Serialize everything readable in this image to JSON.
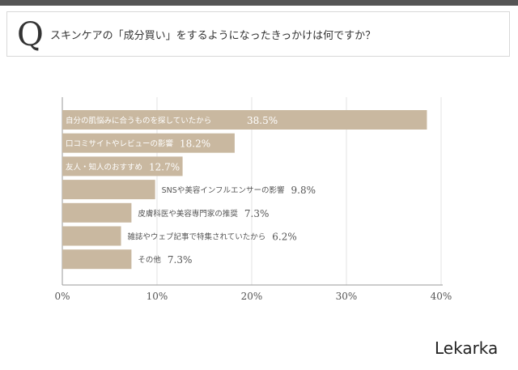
{
  "question": {
    "mark": "Q",
    "text": "スキンケアの「成分買い」をするようになったきっかけは何ですか？"
  },
  "brand": "Lekarka",
  "chart_data": {
    "type": "bar",
    "orientation": "horizontal",
    "categories": [
      "自分の肌悩みに合うものを探していたから",
      "口コミサイトやレビューの影響",
      "友人・知人のおすすめ",
      "SNSや美容インフルエンサーの影響",
      "皮膚科医や美容専門家の推奨",
      "雑誌やウェブ記事で特集されていたから",
      "その他"
    ],
    "values": [
      38.5,
      18.2,
      12.7,
      9.8,
      7.3,
      6.2,
      7.3
    ],
    "value_labels": [
      "38.5%",
      "18.2%",
      "12.7%",
      "9.8%",
      "7.3%",
      "6.2%",
      "7.3%"
    ],
    "xticks": [
      "0%",
      "10%",
      "20%",
      "30%",
      "40%"
    ],
    "xlim": [
      0,
      40
    ],
    "bar_color": "#c9b8a0",
    "grid": true
  }
}
